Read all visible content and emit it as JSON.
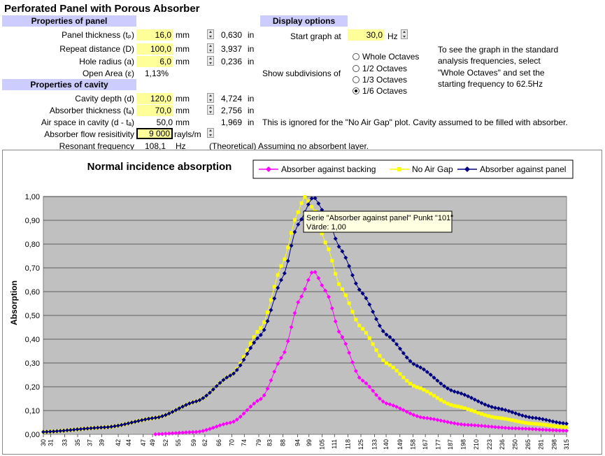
{
  "title": "Perforated Panel with Porous Absorber",
  "panel": {
    "header": "Properties of panel",
    "rows": [
      {
        "label": "Panel thickness (tₚ)",
        "value": "16,0",
        "unit": "mm",
        "conv": "0,630",
        "conv_unit": "in"
      },
      {
        "label": "Repeat distance (D)",
        "value": "100,0",
        "unit": "mm",
        "conv": "3,937",
        "conv_unit": "in"
      },
      {
        "label": "Hole radius (a)",
        "value": "6,0",
        "unit": "mm",
        "conv": "0,236",
        "conv_unit": "in"
      }
    ],
    "open_area_label": "Open Area (ε)",
    "open_area_value": "1,13%"
  },
  "cavity": {
    "header": "Properties of cavity",
    "rows": [
      {
        "label": "Cavity depth (d)",
        "value": "120,0",
        "unit": "mm",
        "conv": "4,724",
        "conv_unit": "in"
      },
      {
        "label": "Absorber thickness (tₐ)",
        "value": "70,0",
        "unit": "mm",
        "conv": "2,756",
        "conv_unit": "in"
      }
    ],
    "air_space_label": "Air space in cavity (d - tₐ)",
    "air_space_value": "50,0",
    "air_space_unit": "mm",
    "air_space_conv": "1,969",
    "air_space_conv_unit": "in",
    "air_space_note": "This is ignored for the \"No Air Gap\" plot.  Cavity assumed to be filled with absorber.",
    "flow_label": "Absorber flow resisitivity",
    "flow_value": "9 000",
    "flow_unit": "rayls/m",
    "resonant_label": "Resonant frequency",
    "resonant_value": "108,1",
    "resonant_unit": "Hz",
    "resonant_note": "(Theoretical) Assuming no absorbent layer."
  },
  "display": {
    "header": "Display options",
    "start_label": "Start graph at",
    "start_value": "30,0",
    "start_unit": "Hz",
    "subdiv_label": "Show subdivisions of",
    "options": [
      "Whole Octaves",
      "1/2 Octaves",
      "1/3 Octaves",
      "1/6 Octaves"
    ],
    "selected_option": 3,
    "hint": [
      "To see the graph in the standard",
      "analysis frequencies, select",
      "\"Whole Octaves\" and set the",
      "starting frequency to 62.5Hz"
    ]
  },
  "colors": {
    "header_bg": "#ccccff",
    "input_bg": "#ffff99",
    "plot_bg": "#c0c0c0",
    "series_backing": "#ff00ff",
    "series_noair": "#ffff00",
    "series_panel": "#000080"
  },
  "tooltip": {
    "line1": "Serie \"Absorber against panel\" Punkt \"101\"",
    "line2": "Värde: 1,00"
  },
  "chart_data": {
    "type": "line",
    "title": "Normal incidence absorption",
    "ylabel": "Absorption",
    "xlabel": "",
    "ylim": [
      0,
      1
    ],
    "yticks": [
      "0,00",
      "0,10",
      "0,20",
      "0,30",
      "0,40",
      "0,50",
      "0,60",
      "0,70",
      "0,80",
      "0,90",
      "1,00"
    ],
    "x_tick_labels": [
      "30",
      "31",
      "33",
      "35",
      "37",
      "39",
      "42",
      "44",
      "47",
      "49",
      "52",
      "55",
      "59",
      "62",
      "66",
      "70",
      "74",
      "79",
      "83",
      "88",
      "94",
      "99",
      "105",
      "111",
      "118",
      "125",
      "133",
      "140",
      "149",
      "158",
      "167",
      "177",
      "187",
      "198",
      "210",
      "223",
      "236",
      "250",
      "265",
      "281",
      "298",
      "315"
    ],
    "x_start_hz": 30,
    "x_end_hz": 315,
    "legend_position": "top-right",
    "series": [
      {
        "name": "Absorber against backing",
        "peak_hz": 101,
        "peak": 0.69,
        "peak_knots": [
          [
            49,
            0.0
          ],
          [
            60,
            0.01
          ],
          [
            70,
            0.05
          ],
          [
            80,
            0.15
          ],
          [
            88,
            0.33
          ],
          [
            95,
            0.57
          ],
          [
            101,
            0.69
          ],
          [
            107,
            0.6
          ],
          [
            114,
            0.42
          ],
          [
            125,
            0.23
          ],
          [
            140,
            0.13
          ],
          [
            165,
            0.07
          ],
          [
            200,
            0.04
          ],
          [
            250,
            0.025
          ],
          [
            315,
            0.015
          ]
        ]
      },
      {
        "name": "No Air Gap",
        "peak_knots": [
          [
            30,
            0.01
          ],
          [
            40,
            0.03
          ],
          [
            50,
            0.07
          ],
          [
            60,
            0.14
          ],
          [
            70,
            0.25
          ],
          [
            80,
            0.45
          ],
          [
            88,
            0.72
          ],
          [
            94,
            0.93
          ],
          [
            97,
            1.0
          ],
          [
            101,
            0.95
          ],
          [
            107,
            0.8
          ],
          [
            114,
            0.62
          ],
          [
            125,
            0.45
          ],
          [
            140,
            0.3
          ],
          [
            160,
            0.2
          ],
          [
            190,
            0.12
          ],
          [
            230,
            0.07
          ],
          [
            270,
            0.045
          ],
          [
            315,
            0.03
          ]
        ]
      },
      {
        "name": "Absorber against panel",
        "peak_knots": [
          [
            30,
            0.01
          ],
          [
            40,
            0.03
          ],
          [
            50,
            0.07
          ],
          [
            60,
            0.14
          ],
          [
            70,
            0.25
          ],
          [
            80,
            0.42
          ],
          [
            88,
            0.66
          ],
          [
            94,
            0.88
          ],
          [
            101,
            1.0
          ],
          [
            107,
            0.92
          ],
          [
            114,
            0.78
          ],
          [
            125,
            0.6
          ],
          [
            140,
            0.42
          ],
          [
            160,
            0.29
          ],
          [
            190,
            0.18
          ],
          [
            230,
            0.11
          ],
          [
            270,
            0.07
          ],
          [
            315,
            0.045
          ]
        ]
      }
    ]
  }
}
